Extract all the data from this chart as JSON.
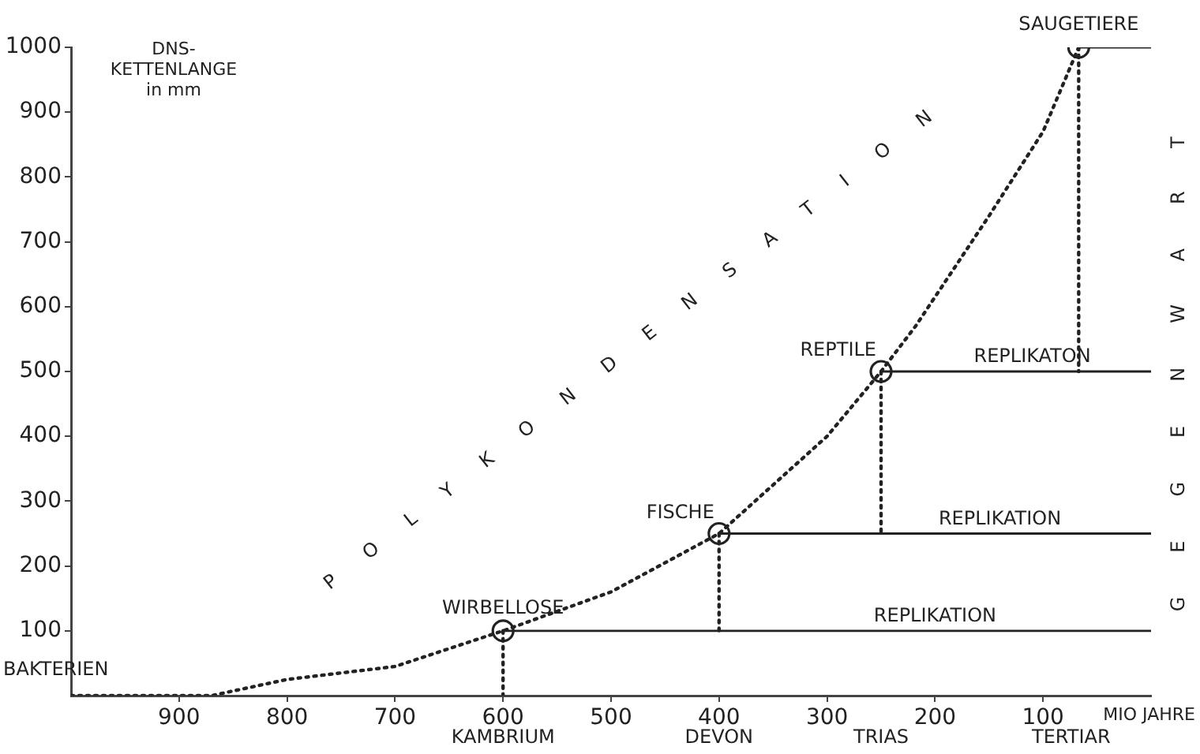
{
  "chart_data": {
    "type": "line",
    "ylabel": "DNS-\nKETTENLANGE\nin mm",
    "xlabel": "MIO JAHRE",
    "xlim": [
      1000,
      0
    ],
    "xticks": [
      900,
      800,
      700,
      600,
      500,
      400,
      300,
      200,
      100
    ],
    "ylim": [
      0,
      1000
    ],
    "yticks": [
      100,
      200,
      300,
      400,
      500,
      600,
      700,
      800,
      900,
      1000
    ],
    "grid": false,
    "legend": false,
    "series": [
      {
        "color": "#222222",
        "line_style": "dotted",
        "marker": "none",
        "x": [
          1000,
          870,
          800,
          700,
          600,
          500,
          400,
          350,
          300,
          250,
          218,
          150,
          100,
          67
        ],
        "values": [
          0,
          0,
          25,
          45,
          100,
          160,
          250,
          325,
          400,
          500,
          570,
          740,
          870,
          1000
        ]
      },
      {
        "color": "#222222",
        "line_style": "solid",
        "marker": "none",
        "x": [
          600,
          0
        ],
        "values": [
          100,
          100
        ]
      },
      {
        "color": "#222222",
        "line_style": "solid",
        "marker": "none",
        "x": [
          400,
          0
        ],
        "values": [
          250,
          250
        ]
      },
      {
        "color": "#222222",
        "line_style": "solid",
        "marker": "none",
        "x": [
          250,
          0
        ],
        "values": [
          500,
          500
        ]
      },
      {
        "color": "#222222",
        "line_style": "solid",
        "marker": "none",
        "x": [
          67,
          0
        ],
        "values": [
          1000,
          1000
        ]
      },
      {
        "color": "#222222",
        "line_style": "dotted",
        "marker": "none",
        "x": [
          600,
          600
        ],
        "values": [
          100,
          0
        ]
      },
      {
        "color": "#222222",
        "line_style": "dotted",
        "marker": "none",
        "x": [
          400,
          400
        ],
        "values": [
          250,
          100
        ]
      },
      {
        "color": "#222222",
        "line_style": "dotted",
        "marker": "none",
        "x": [
          250,
          250
        ],
        "values": [
          500,
          250
        ]
      },
      {
        "color": "#222222",
        "line_style": "dotted",
        "marker": "none",
        "x": [
          67,
          67
        ],
        "values": [
          1000,
          500
        ]
      },
      {
        "type": "scatter",
        "color": "#222222",
        "marker": "circle",
        "x": [
          600,
          400,
          250,
          67
        ],
        "values": [
          100,
          250,
          500,
          1000
        ]
      }
    ],
    "annotations": [
      "POLYKONDENSATION",
      "GEGENWART",
      {
        "text": "BAKTERIEN",
        "x": 1000,
        "y": 0
      },
      {
        "text": "WIRBELLOSE",
        "x": 600,
        "y": 100
      },
      {
        "text": "FISCHE",
        "x": 400,
        "y": 250
      },
      {
        "text": "REPTILE",
        "x": 250,
        "y": 500
      },
      {
        "text": "SAUGETIERE",
        "x": 67,
        "y": 1000
      },
      {
        "text": "REPLIKATION",
        "x": 200,
        "y": 100
      },
      {
        "text": "REPLIKATION",
        "x": 140,
        "y": 250
      },
      {
        "text": "REPLIKATON",
        "x": 110,
        "y": 500
      },
      "KAMBRIUM",
      "DEVON",
      "TRIAS",
      "TERTIAR"
    ]
  }
}
